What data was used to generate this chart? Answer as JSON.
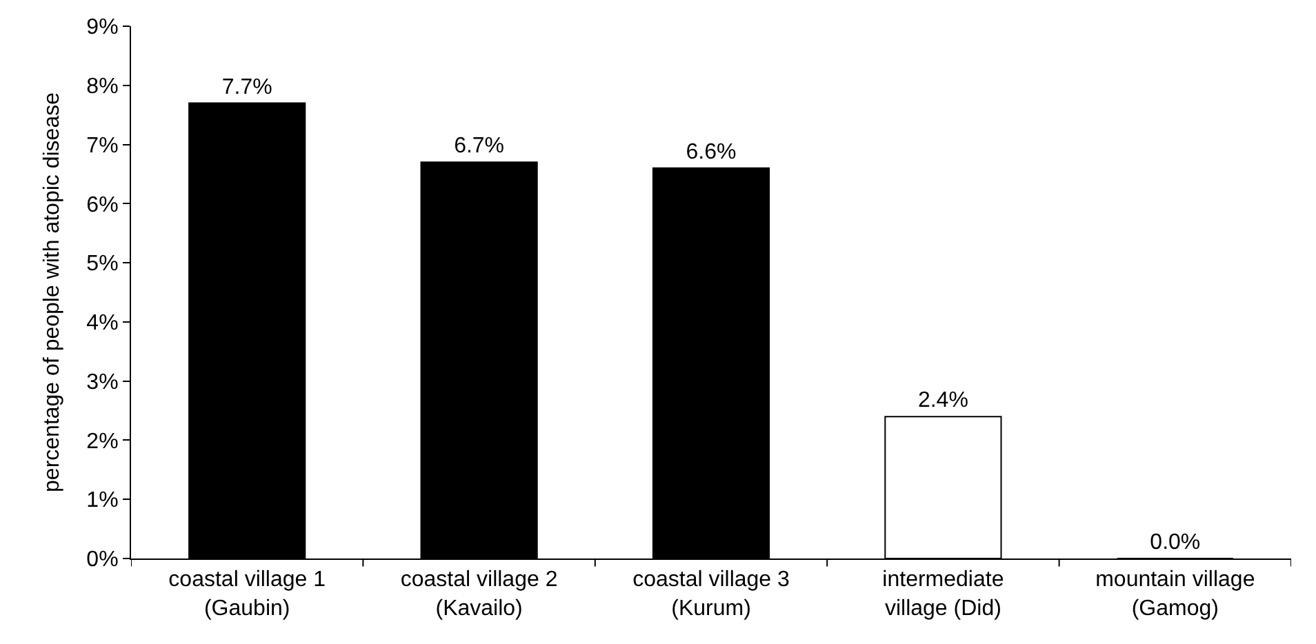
{
  "chart_data": {
    "type": "bar",
    "ylabel": "percentage of people with atopic disease",
    "categories": [
      "coastal village 1\n(Gaubin)",
      "coastal village 2\n(Kavailo)",
      "coastal village 3\n(Kurum)",
      "intermediate\nvillage (Did)",
      "mountain village\n(Gamog)"
    ],
    "values": [
      7.7,
      6.7,
      6.6,
      2.4,
      0.0
    ],
    "colors": [
      "#000000",
      "#000000",
      "#000000",
      "#ffffff",
      "#ffffff"
    ],
    "value_labels": [
      "7.7%",
      "6.7%",
      "6.6%",
      "2.4%",
      "0.0%"
    ],
    "ylim": [
      0,
      9
    ],
    "yticks": [
      {
        "value": 0,
        "label": "0%"
      },
      {
        "value": 1,
        "label": "1%"
      },
      {
        "value": 2,
        "label": "2%"
      },
      {
        "value": 3,
        "label": "3%"
      },
      {
        "value": 4,
        "label": "4%"
      },
      {
        "value": 5,
        "label": "5%"
      },
      {
        "value": 6,
        "label": "6%"
      },
      {
        "value": 7,
        "label": "7%"
      },
      {
        "value": 8,
        "label": "8%"
      },
      {
        "value": 9,
        "label": "9%"
      }
    ]
  }
}
